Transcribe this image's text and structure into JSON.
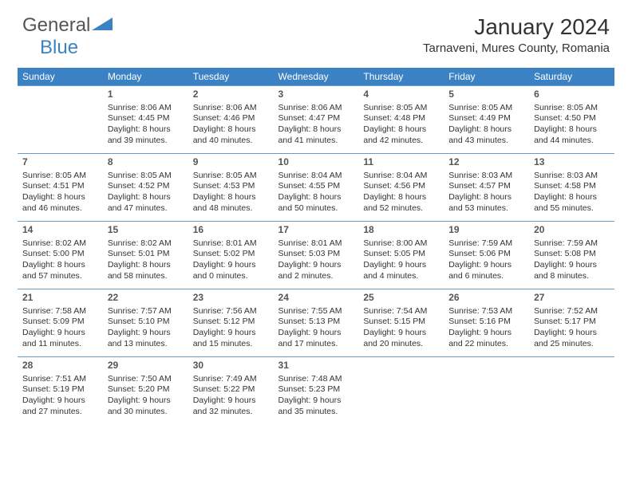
{
  "logo": {
    "general": "General",
    "blue": "Blue"
  },
  "title": "January 2024",
  "location": "Tarnaveni, Mures County, Romania",
  "header_bg": "#3b82c4",
  "header_fg": "#ffffff",
  "border_color": "#6a9bc7",
  "weekdays": [
    "Sunday",
    "Monday",
    "Tuesday",
    "Wednesday",
    "Thursday",
    "Friday",
    "Saturday"
  ],
  "first_weekday_index": 1,
  "days": [
    {
      "n": 1,
      "sr": "8:06 AM",
      "ss": "4:45 PM",
      "dl": "8 hours and 39 minutes."
    },
    {
      "n": 2,
      "sr": "8:06 AM",
      "ss": "4:46 PM",
      "dl": "8 hours and 40 minutes."
    },
    {
      "n": 3,
      "sr": "8:06 AM",
      "ss": "4:47 PM",
      "dl": "8 hours and 41 minutes."
    },
    {
      "n": 4,
      "sr": "8:05 AM",
      "ss": "4:48 PM",
      "dl": "8 hours and 42 minutes."
    },
    {
      "n": 5,
      "sr": "8:05 AM",
      "ss": "4:49 PM",
      "dl": "8 hours and 43 minutes."
    },
    {
      "n": 6,
      "sr": "8:05 AM",
      "ss": "4:50 PM",
      "dl": "8 hours and 44 minutes."
    },
    {
      "n": 7,
      "sr": "8:05 AM",
      "ss": "4:51 PM",
      "dl": "8 hours and 46 minutes."
    },
    {
      "n": 8,
      "sr": "8:05 AM",
      "ss": "4:52 PM",
      "dl": "8 hours and 47 minutes."
    },
    {
      "n": 9,
      "sr": "8:05 AM",
      "ss": "4:53 PM",
      "dl": "8 hours and 48 minutes."
    },
    {
      "n": 10,
      "sr": "8:04 AM",
      "ss": "4:55 PM",
      "dl": "8 hours and 50 minutes."
    },
    {
      "n": 11,
      "sr": "8:04 AM",
      "ss": "4:56 PM",
      "dl": "8 hours and 52 minutes."
    },
    {
      "n": 12,
      "sr": "8:03 AM",
      "ss": "4:57 PM",
      "dl": "8 hours and 53 minutes."
    },
    {
      "n": 13,
      "sr": "8:03 AM",
      "ss": "4:58 PM",
      "dl": "8 hours and 55 minutes."
    },
    {
      "n": 14,
      "sr": "8:02 AM",
      "ss": "5:00 PM",
      "dl": "8 hours and 57 minutes."
    },
    {
      "n": 15,
      "sr": "8:02 AM",
      "ss": "5:01 PM",
      "dl": "8 hours and 58 minutes."
    },
    {
      "n": 16,
      "sr": "8:01 AM",
      "ss": "5:02 PM",
      "dl": "9 hours and 0 minutes."
    },
    {
      "n": 17,
      "sr": "8:01 AM",
      "ss": "5:03 PM",
      "dl": "9 hours and 2 minutes."
    },
    {
      "n": 18,
      "sr": "8:00 AM",
      "ss": "5:05 PM",
      "dl": "9 hours and 4 minutes."
    },
    {
      "n": 19,
      "sr": "7:59 AM",
      "ss": "5:06 PM",
      "dl": "9 hours and 6 minutes."
    },
    {
      "n": 20,
      "sr": "7:59 AM",
      "ss": "5:08 PM",
      "dl": "9 hours and 8 minutes."
    },
    {
      "n": 21,
      "sr": "7:58 AM",
      "ss": "5:09 PM",
      "dl": "9 hours and 11 minutes."
    },
    {
      "n": 22,
      "sr": "7:57 AM",
      "ss": "5:10 PM",
      "dl": "9 hours and 13 minutes."
    },
    {
      "n": 23,
      "sr": "7:56 AM",
      "ss": "5:12 PM",
      "dl": "9 hours and 15 minutes."
    },
    {
      "n": 24,
      "sr": "7:55 AM",
      "ss": "5:13 PM",
      "dl": "9 hours and 17 minutes."
    },
    {
      "n": 25,
      "sr": "7:54 AM",
      "ss": "5:15 PM",
      "dl": "9 hours and 20 minutes."
    },
    {
      "n": 26,
      "sr": "7:53 AM",
      "ss": "5:16 PM",
      "dl": "9 hours and 22 minutes."
    },
    {
      "n": 27,
      "sr": "7:52 AM",
      "ss": "5:17 PM",
      "dl": "9 hours and 25 minutes."
    },
    {
      "n": 28,
      "sr": "7:51 AM",
      "ss": "5:19 PM",
      "dl": "9 hours and 27 minutes."
    },
    {
      "n": 29,
      "sr": "7:50 AM",
      "ss": "5:20 PM",
      "dl": "9 hours and 30 minutes."
    },
    {
      "n": 30,
      "sr": "7:49 AM",
      "ss": "5:22 PM",
      "dl": "9 hours and 32 minutes."
    },
    {
      "n": 31,
      "sr": "7:48 AM",
      "ss": "5:23 PM",
      "dl": "9 hours and 35 minutes."
    }
  ],
  "labels": {
    "sunrise": "Sunrise: ",
    "sunset": "Sunset: ",
    "daylight": "Daylight: "
  }
}
